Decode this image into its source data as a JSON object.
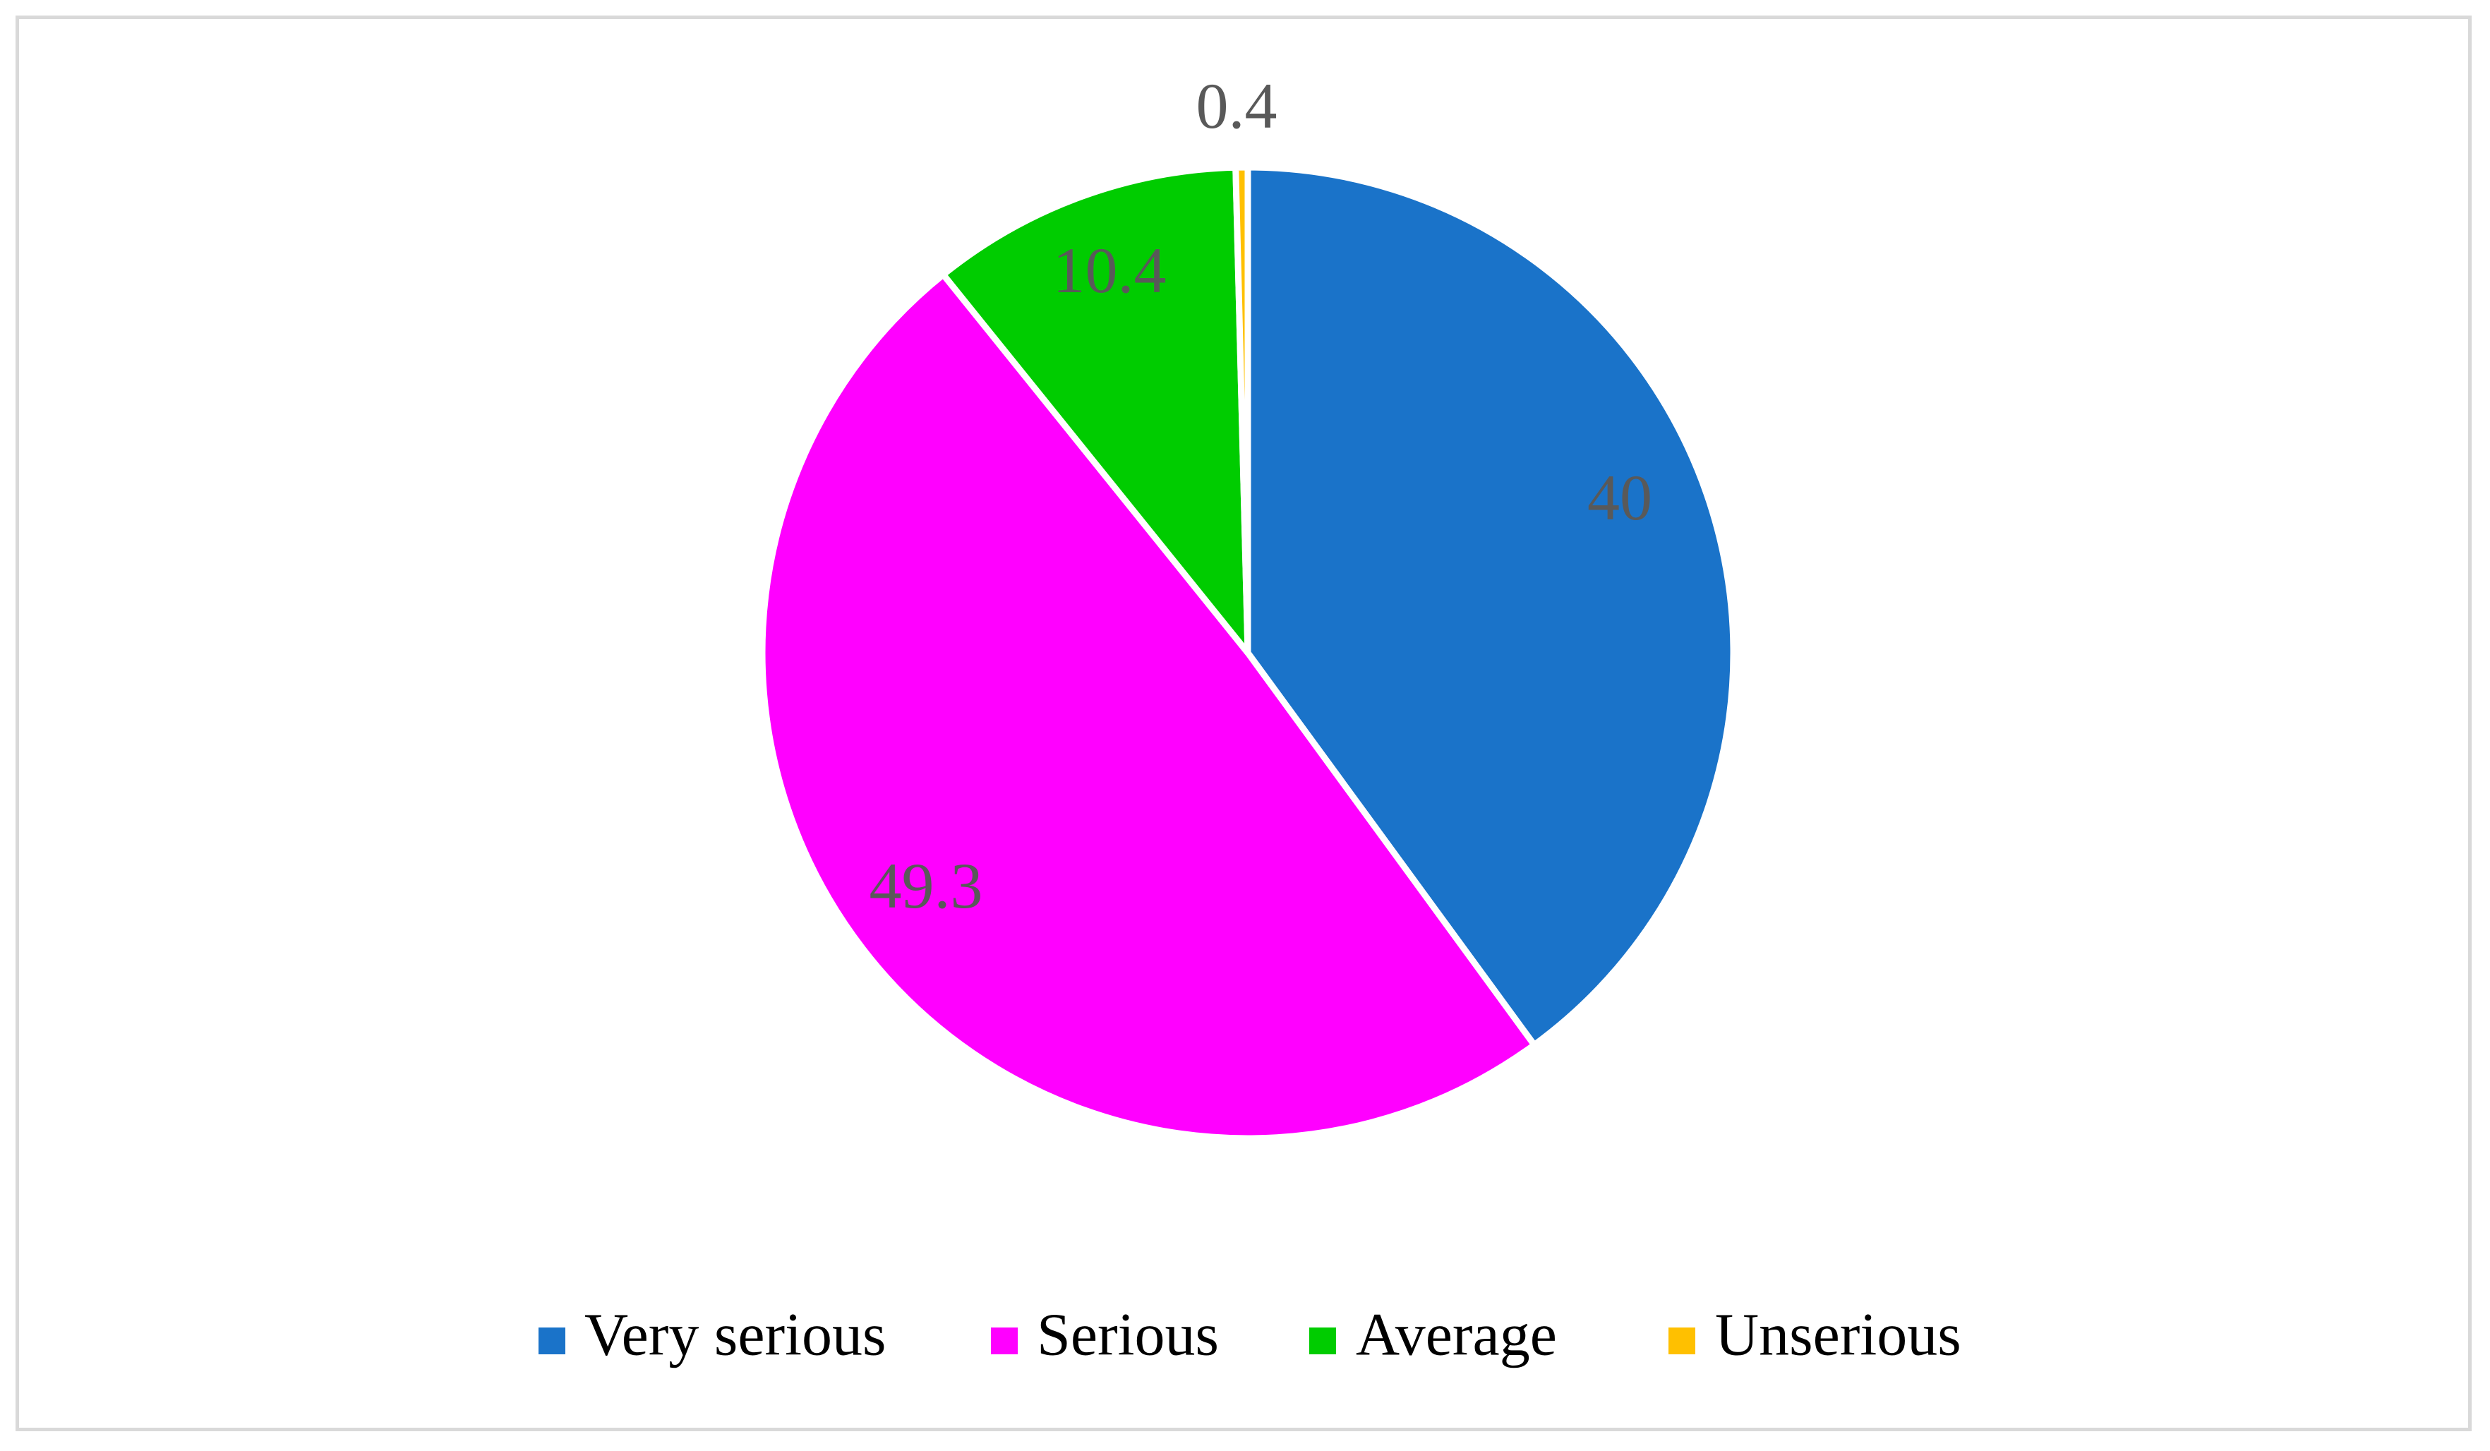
{
  "chart_data": {
    "type": "pie",
    "title": "",
    "categories": [
      "Very serious",
      "Serious",
      "Average",
      "Unserious"
    ],
    "values": [
      40,
      49.3,
      10.4,
      0.4
    ],
    "labels": [
      "40",
      "49.3",
      "10.4",
      "0.4"
    ],
    "colors": [
      "#1a73c9",
      "#ff00ff",
      "#00cc00",
      "#ffc000"
    ],
    "start_angle_deg": 0,
    "direction": "clockwise",
    "legend_position": "bottom",
    "data_labels": true
  }
}
